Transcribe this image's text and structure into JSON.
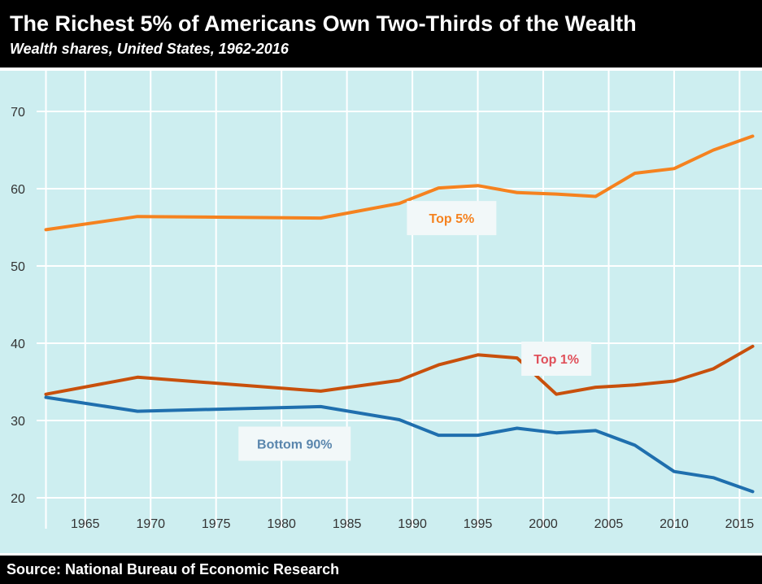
{
  "header": {
    "title": "The Richest 5% of Americans Own Two-Thirds of the Wealth",
    "subtitle": "Wealth shares, United States, 1962-2016"
  },
  "footer": {
    "source": "Source: National Bureau of Economic Research"
  },
  "colors": {
    "background": "#cdeef0",
    "grid": "#ffffff",
    "top5": "#f5821f",
    "top1": "#c8500c",
    "bottom90": "#1f6fae",
    "top5_label": "#f5821f",
    "top1_label": "#e0505a",
    "bottom90_label": "#5a86ad"
  },
  "chart_data": {
    "type": "line",
    "title": "The Richest 5% of Americans Own Two-Thirds of the Wealth",
    "subtitle": "Wealth shares, United States, 1962-2016",
    "xlabel": "",
    "ylabel": "",
    "xlim": [
      1961,
      2017
    ],
    "ylim": [
      19,
      74
    ],
    "xticks": [
      1965,
      1970,
      1975,
      1980,
      1985,
      1990,
      1995,
      2000,
      2005,
      2010,
      2015
    ],
    "yticks": [
      20,
      30,
      40,
      50,
      60,
      70
    ],
    "grid": true,
    "series": [
      {
        "name": "Top 5%",
        "x": [
          1962,
          1969,
          1983,
          1989,
          1992,
          1995,
          1998,
          2001,
          2004,
          2007,
          2010,
          2013,
          2016
        ],
        "values": [
          54.7,
          56.4,
          56.2,
          58.1,
          60.1,
          60.4,
          59.5,
          59.3,
          59.0,
          62.0,
          62.6,
          65.0,
          66.8
        ]
      },
      {
        "name": "Top 1%",
        "x": [
          1962,
          1969,
          1983,
          1989,
          1992,
          1995,
          1998,
          2001,
          2004,
          2007,
          2010,
          2013,
          2016
        ],
        "values": [
          33.4,
          35.6,
          33.8,
          35.2,
          37.2,
          38.5,
          38.1,
          33.4,
          34.3,
          34.6,
          35.1,
          36.7,
          39.6
        ]
      },
      {
        "name": "Bottom 90%",
        "x": [
          1962,
          1969,
          1983,
          1989,
          1992,
          1995,
          1998,
          2001,
          2004,
          2007,
          2010,
          2013,
          2016
        ],
        "values": [
          33.0,
          31.2,
          31.8,
          30.1,
          28.1,
          28.1,
          29.0,
          28.4,
          28.7,
          26.8,
          23.4,
          22.6,
          20.8
        ]
      }
    ],
    "annotations": [
      {
        "text": "Top 5%",
        "series": "Top 5%",
        "x": 1993,
        "y": 56.2
      },
      {
        "text": "Top 1%",
        "series": "Top 1%",
        "x": 2001,
        "y": 38.0
      },
      {
        "text": "Bottom 90%",
        "series": "Bottom 90%",
        "x": 1981,
        "y": 27.0
      }
    ]
  }
}
